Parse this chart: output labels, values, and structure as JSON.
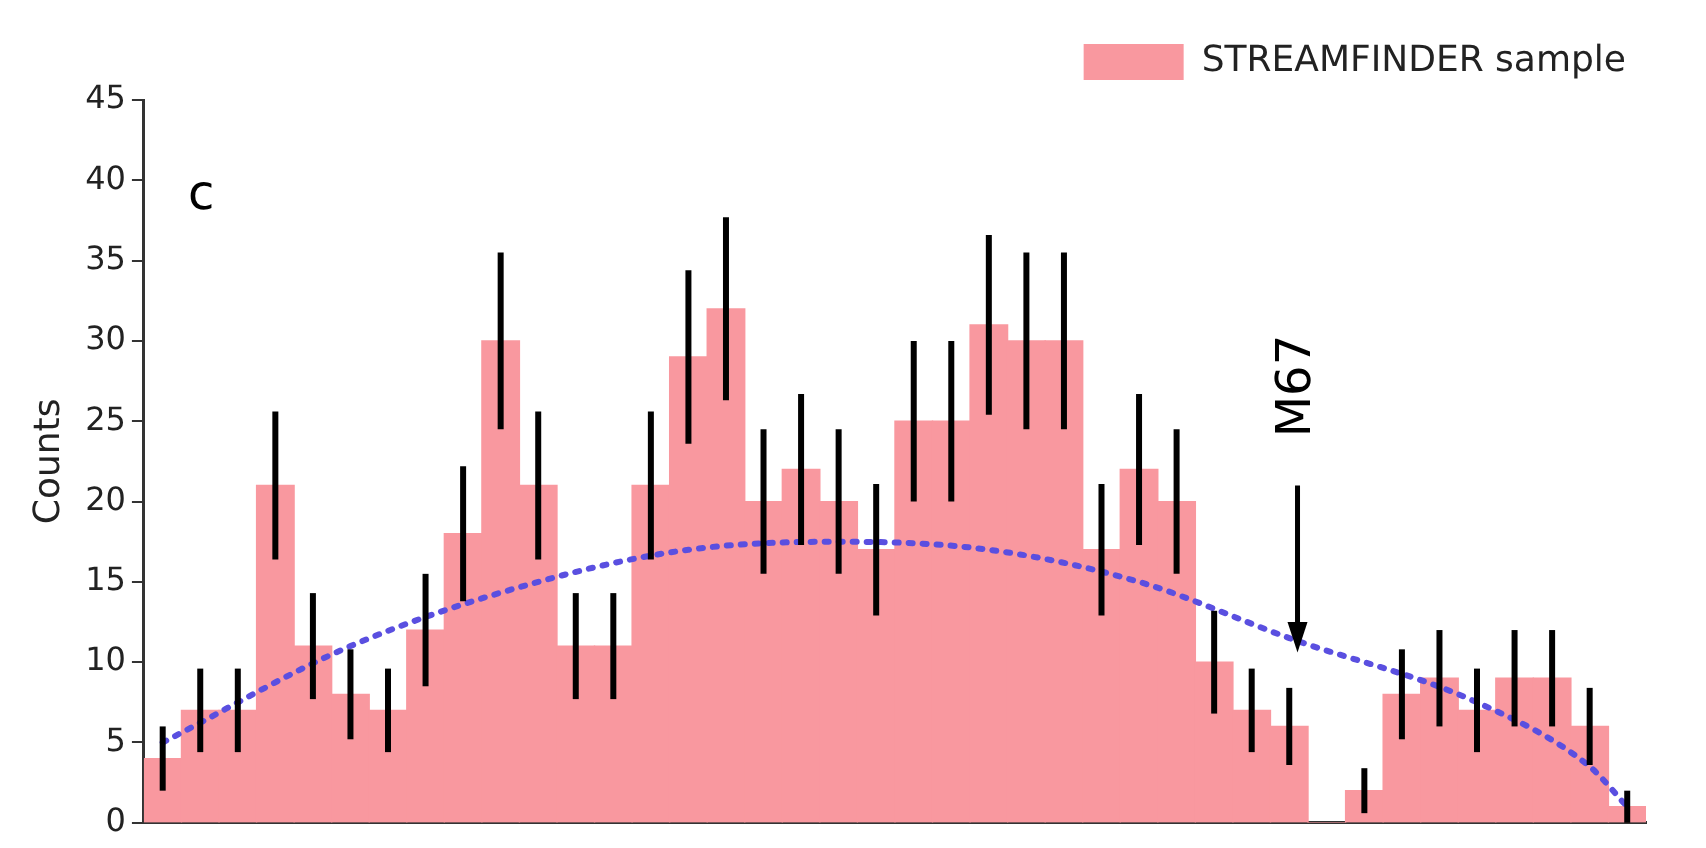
{
  "chart_data": {
    "type": "bar",
    "ylabel": "Counts",
    "annotations": [
      "c",
      "M67"
    ],
    "categories": [
      null,
      null,
      null,
      null,
      null,
      null,
      null,
      null,
      null,
      null,
      null,
      null,
      null,
      null,
      null,
      null,
      null,
      null,
      null,
      null,
      null,
      null,
      null,
      null,
      null,
      null,
      null,
      null,
      null,
      null,
      null,
      null,
      null,
      null,
      null,
      null,
      null,
      null,
      null,
      null
    ],
    "series": [
      {
        "name": "STREAMFINDER sample",
        "color": "#f9989f",
        "values": [
          4,
          7,
          7,
          21,
          11,
          8,
          7,
          12,
          18,
          30,
          21,
          11,
          11,
          21,
          29,
          32,
          20,
          22,
          20,
          17,
          25,
          25,
          31,
          30,
          30,
          17,
          22,
          20,
          10,
          7,
          6,
          0,
          2,
          8,
          9,
          7,
          9,
          9,
          6,
          1
        ],
        "errors": [
          2,
          2.6,
          2.6,
          4.6,
          3.3,
          2.8,
          2.6,
          3.5,
          4.2,
          5.5,
          4.6,
          3.3,
          3.3,
          4.6,
          5.4,
          5.7,
          4.5,
          4.7,
          4.5,
          4.1,
          5,
          5,
          5.6,
          5.5,
          5.5,
          4.1,
          4.7,
          4.5,
          3.2,
          2.6,
          2.4,
          null,
          1.4,
          2.8,
          3,
          2.6,
          3,
          3,
          2.4,
          1
        ]
      },
      {
        "type": "line",
        "color": "#5a4fe0",
        "line_style": "dotted",
        "marker": "none",
        "values": [
          5,
          null,
          null,
          null,
          null,
          11,
          null,
          null,
          null,
          null,
          15,
          null,
          null,
          null,
          17,
          null,
          null,
          null,
          17.5,
          null,
          null,
          null,
          17,
          null,
          null,
          null,
          15,
          null,
          null,
          null,
          11.5,
          null,
          null,
          null,
          null,
          7.5,
          null,
          null,
          3.5,
          1
        ]
      }
    ],
    "ylim": [
      0,
      45
    ],
    "yticks": [
      0,
      5,
      10,
      15,
      20,
      25,
      30,
      35,
      40,
      45
    ],
    "grid": false,
    "legend": "top right",
    "tick_labels": "y"
  }
}
